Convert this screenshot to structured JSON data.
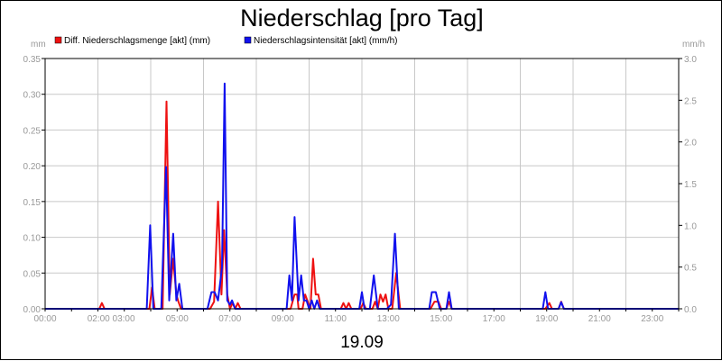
{
  "chart_data": {
    "type": "line",
    "title": "Niederschlag [pro Tag]",
    "date_label": "19.09",
    "y_left": {
      "unit": "mm",
      "range": [
        0,
        0.35
      ],
      "ticks": [
        "0.00",
        "0.05",
        "0.10",
        "0.15",
        "0.20",
        "0.25",
        "0.30",
        "0.35"
      ]
    },
    "y_right": {
      "unit": "mm/h",
      "range": [
        0,
        3.0
      ],
      "ticks": [
        "0.0",
        "0.5",
        "1.0",
        "1.5",
        "2.0",
        "2.5",
        "3.0"
      ]
    },
    "x_range_hours": [
      0,
      24
    ],
    "x_ticks": [
      "00:00",
      "02:00 03:00",
      "05:00",
      "07:00",
      "09:00",
      "11:00",
      "13:00",
      "15:00",
      "17:00",
      "19:00",
      "21:00",
      "23:00"
    ],
    "grid": true,
    "legend_position": "top-left",
    "series": [
      {
        "name": "Diff. Niederschlagsmenge [akt] (mm)",
        "color": "#ee1111",
        "axis": "left",
        "points": [
          [
            0,
            0
          ],
          [
            2.05,
            0
          ],
          [
            2.15,
            0.008
          ],
          [
            2.25,
            0
          ],
          [
            3.95,
            0
          ],
          [
            4.05,
            0.03
          ],
          [
            4.15,
            0
          ],
          [
            4.45,
            0
          ],
          [
            4.6,
            0.29
          ],
          [
            4.72,
            0.02
          ],
          [
            4.85,
            0.07
          ],
          [
            4.97,
            0.02
          ],
          [
            5.05,
            0.01
          ],
          [
            5.15,
            0
          ],
          [
            6.25,
            0
          ],
          [
            6.4,
            0.01
          ],
          [
            6.55,
            0.15
          ],
          [
            6.68,
            0.02
          ],
          [
            6.78,
            0.11
          ],
          [
            6.9,
            0.02
          ],
          [
            7.0,
            0
          ],
          [
            7.1,
            0.008
          ],
          [
            7.2,
            0
          ],
          [
            7.3,
            0.008
          ],
          [
            7.4,
            0
          ],
          [
            9.3,
            0
          ],
          [
            9.45,
            0.02
          ],
          [
            9.55,
            0.02
          ],
          [
            9.6,
            0
          ],
          [
            9.75,
            0
          ],
          [
            9.85,
            0.02
          ],
          [
            9.95,
            0.01
          ],
          [
            10.05,
            0
          ],
          [
            10.15,
            0.07
          ],
          [
            10.25,
            0.02
          ],
          [
            10.35,
            0.02
          ],
          [
            10.45,
            0
          ],
          [
            11.2,
            0
          ],
          [
            11.3,
            0.008
          ],
          [
            11.4,
            0
          ],
          [
            11.5,
            0.008
          ],
          [
            11.6,
            0
          ],
          [
            11.95,
            0
          ],
          [
            12.05,
            0.008
          ],
          [
            12.15,
            0
          ],
          [
            12.4,
            0
          ],
          [
            12.5,
            0.01
          ],
          [
            12.6,
            0
          ],
          [
            12.7,
            0.02
          ],
          [
            12.8,
            0.01
          ],
          [
            12.9,
            0.02
          ],
          [
            13.0,
            0
          ],
          [
            13.15,
            0
          ],
          [
            13.3,
            0.05
          ],
          [
            13.45,
            0
          ],
          [
            14.6,
            0
          ],
          [
            14.75,
            0.01
          ],
          [
            14.9,
            0.01
          ],
          [
            15.0,
            0
          ],
          [
            15.2,
            0
          ],
          [
            15.3,
            0.01
          ],
          [
            15.4,
            0
          ],
          [
            18.95,
            0
          ],
          [
            19.1,
            0.008
          ],
          [
            19.2,
            0
          ],
          [
            19.45,
            0
          ],
          [
            19.55,
            0.01
          ],
          [
            19.65,
            0
          ],
          [
            24,
            0
          ]
        ]
      },
      {
        "name": "Niederschlagsintensität [akt] (mm/h)",
        "color": "#1111ee",
        "axis": "right",
        "points": [
          [
            0,
            0
          ],
          [
            3.85,
            0
          ],
          [
            3.98,
            1.0
          ],
          [
            4.1,
            0
          ],
          [
            4.4,
            0
          ],
          [
            4.58,
            1.7
          ],
          [
            4.7,
            0.1
          ],
          [
            4.85,
            0.9
          ],
          [
            4.97,
            0.1
          ],
          [
            5.08,
            0.3
          ],
          [
            5.2,
            0
          ],
          [
            6.15,
            0
          ],
          [
            6.3,
            0.2
          ],
          [
            6.42,
            0.2
          ],
          [
            6.55,
            0.1
          ],
          [
            6.7,
            0.5
          ],
          [
            6.8,
            2.7
          ],
          [
            6.9,
            0.1
          ],
          [
            7.0,
            0.05
          ],
          [
            7.08,
            0.1
          ],
          [
            7.2,
            0
          ],
          [
            9.15,
            0
          ],
          [
            9.25,
            0.4
          ],
          [
            9.35,
            0.1
          ],
          [
            9.45,
            1.1
          ],
          [
            9.6,
            0.1
          ],
          [
            9.7,
            0.4
          ],
          [
            9.8,
            0.1
          ],
          [
            9.9,
            0.1
          ],
          [
            10.0,
            0
          ],
          [
            10.1,
            0.1
          ],
          [
            10.2,
            0
          ],
          [
            10.3,
            0.1
          ],
          [
            10.4,
            0
          ],
          [
            11.9,
            0
          ],
          [
            12.0,
            0.2
          ],
          [
            12.1,
            0
          ],
          [
            12.3,
            0
          ],
          [
            12.45,
            0.4
          ],
          [
            12.6,
            0
          ],
          [
            12.95,
            0
          ],
          [
            13.1,
            0.05
          ],
          [
            13.25,
            0.9
          ],
          [
            13.4,
            0
          ],
          [
            14.55,
            0
          ],
          [
            14.65,
            0.2
          ],
          [
            14.8,
            0.2
          ],
          [
            14.95,
            0
          ],
          [
            15.2,
            0
          ],
          [
            15.3,
            0.2
          ],
          [
            15.4,
            0
          ],
          [
            18.85,
            0
          ],
          [
            18.95,
            0.2
          ],
          [
            19.05,
            0
          ],
          [
            19.45,
            0
          ],
          [
            19.55,
            0.08
          ],
          [
            19.65,
            0
          ],
          [
            24,
            0
          ]
        ]
      }
    ]
  }
}
